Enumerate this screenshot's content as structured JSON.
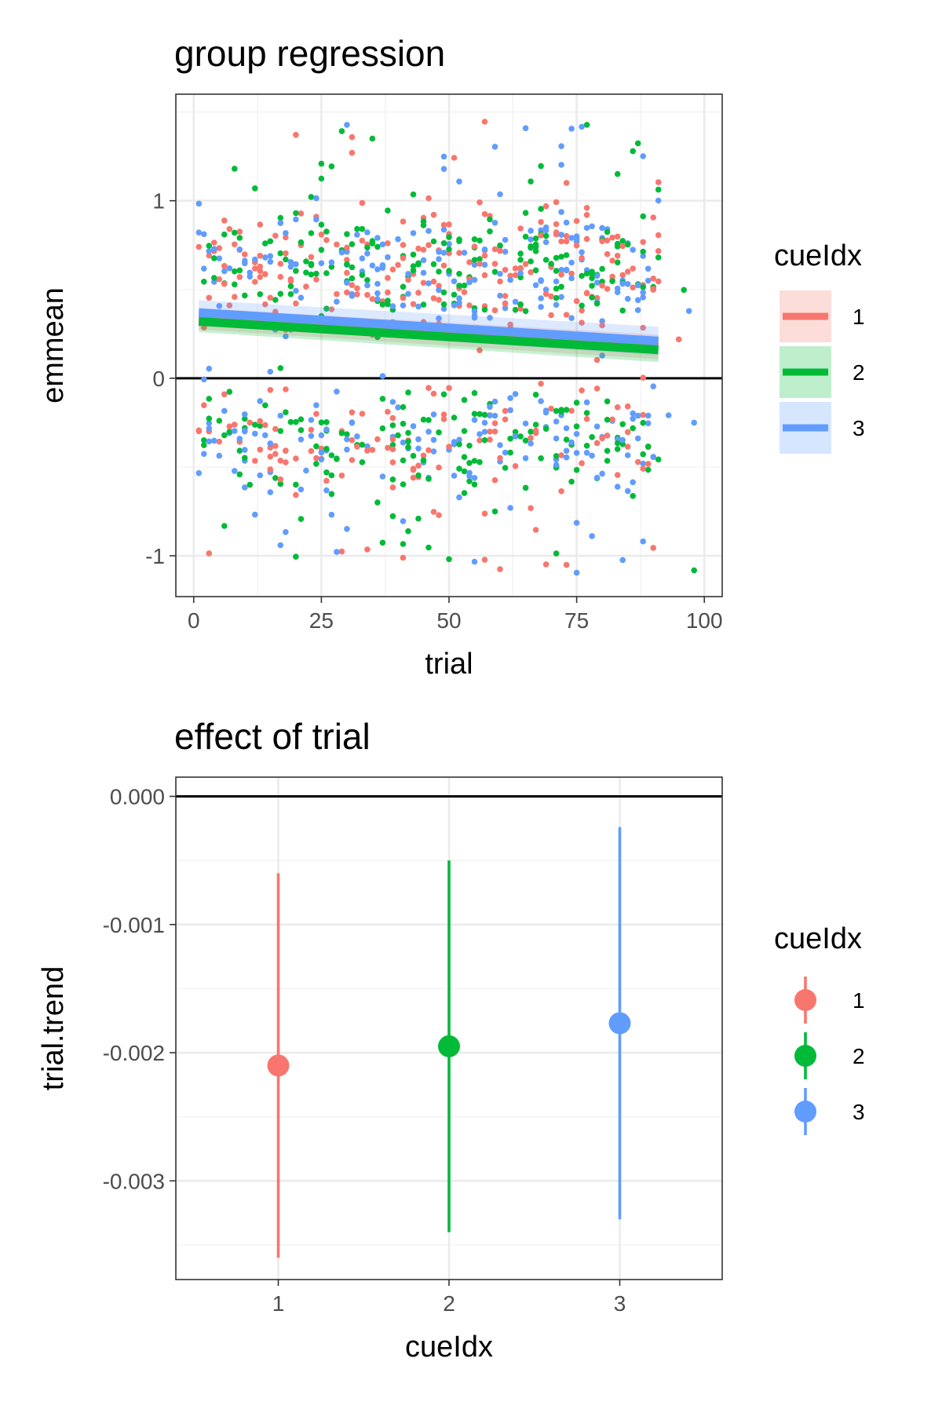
{
  "chart_data": [
    {
      "type": "scatter",
      "title": "group regression",
      "xlabel": "trial",
      "ylabel": "emmean",
      "xlim": [
        -3.5,
        103.5
      ],
      "ylim": [
        -1.23,
        1.6
      ],
      "x_ticks": [
        0,
        25,
        50,
        75,
        100
      ],
      "y_ticks": [
        -1,
        0,
        1
      ],
      "reference_line_y": 0,
      "grid": true,
      "legend": {
        "title": "cueIdx",
        "position": "right",
        "entries": [
          "1",
          "2",
          "3"
        ]
      },
      "colors": [
        "#F8766D",
        "#00BA38",
        "#619CFF"
      ],
      "points_per_series": 330,
      "point_distribution": "bimodal clusters around +0.6 and -0.35, spread about 0.22, plus outliers from -1.1 to 1.5",
      "series": [
        {
          "name": "1",
          "x_range": [
            1,
            91
          ],
          "fit": {
            "x0": 1,
            "y0": 0.335,
            "x1": 91,
            "y1": 0.176,
            "ci_halfwidth": 0.06
          }
        },
        {
          "name": "2",
          "x_range": [
            1,
            91
          ],
          "fit": {
            "x0": 1,
            "y0": 0.32,
            "x1": 91,
            "y1": 0.16,
            "ci_halfwidth": 0.06
          }
        },
        {
          "name": "3",
          "x_range": [
            1,
            91
          ],
          "fit": {
            "x0": 1,
            "y0": 0.37,
            "x1": 91,
            "y1": 0.21,
            "ci_halfwidth": 0.07
          }
        }
      ]
    },
    {
      "type": "errorbar",
      "title": "effect of trial",
      "xlabel": "cueIdx",
      "ylabel": "trial.trend",
      "categories": [
        "1",
        "2",
        "3"
      ],
      "ylim": [
        -0.00377,
        0.00015
      ],
      "y_ticks": [
        0,
        -0.001,
        -0.002,
        -0.003
      ],
      "y_tick_labels": [
        "0.000",
        "-0.001",
        "-0.002",
        "-0.003"
      ],
      "reference_line_y": 0,
      "grid": true,
      "legend": {
        "title": "cueIdx",
        "position": "right",
        "entries": [
          "1",
          "2",
          "3"
        ]
      },
      "colors": [
        "#F8766D",
        "#00BA38",
        "#619CFF"
      ],
      "series": [
        {
          "name": "1",
          "estimate": -0.0021,
          "lower": -0.0036,
          "upper": -0.0006
        },
        {
          "name": "2",
          "estimate": -0.00195,
          "lower": -0.0034,
          "upper": -0.0005
        },
        {
          "name": "3",
          "estimate": -0.00177,
          "lower": -0.0033,
          "upper": -0.00024
        }
      ]
    }
  ]
}
